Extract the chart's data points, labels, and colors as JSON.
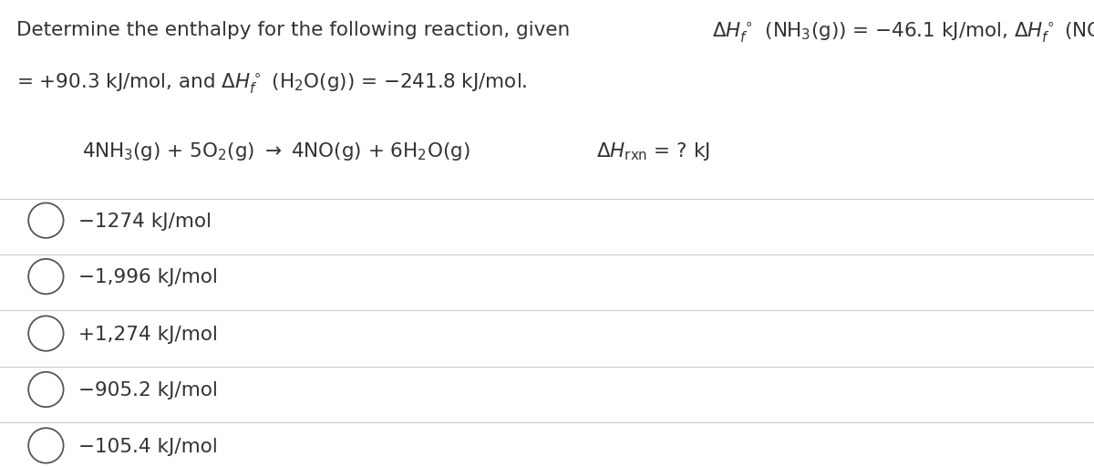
{
  "bg_color": "#ffffff",
  "text_color": "#333333",
  "question_text_line1_a": "Determine the enthalpy for the following reaction, given ",
  "question_text_line1_b": " (NH$_3$(g)) = $-$46.1 kJ/mol, ",
  "question_text_line1_c": " (NO(g))",
  "question_text_line2": "= +90.3 kJ/mol, and ",
  "question_text_line2_b": " (H$_2$O(g)) = $-$241.8 kJ/mol.",
  "reaction": "4NH$_3$(g) + 5O$_2$(g) $\\rightarrow$ 4NO(g) + 6H$_2$O(g)",
  "delta_h_rxn": "$\\Delta H_{\\rm rxn}$ = ? kJ",
  "options": [
    "−1274 kJ/mol",
    "−1,996 kJ/mol",
    "+1,274 kJ/mol",
    "−905.2 kJ/mol",
    "−105.4 kJ/mol"
  ],
  "separator_color": "#cccccc",
  "circle_color": "#555555",
  "font_size_question": 15.5,
  "font_size_options": 15.5,
  "figwidth": 12.0,
  "figheight": 5.12
}
